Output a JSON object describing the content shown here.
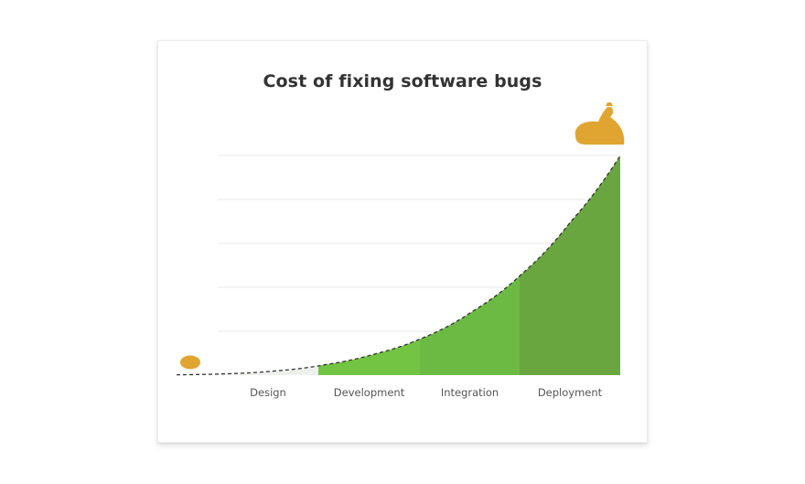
{
  "chart_data": {
    "type": "area",
    "title": "Cost of fixing software bugs",
    "xlabel": "",
    "ylabel": "",
    "categories": [
      "Design",
      "Development",
      "Integration",
      "Deployment"
    ],
    "x": [
      0,
      0.5,
      1,
      1.5,
      2,
      2.5,
      3,
      3.5,
      4,
      4.5
    ],
    "y": [
      0.15,
      0.6,
      1.9,
      4.7,
      9.5,
      17,
      29,
      46,
      70,
      100
    ],
    "ylim": [
      0,
      100
    ],
    "grid": true,
    "legend": "none",
    "colors": {
      "design": "#eef0ec",
      "development": "#74c443",
      "integration": "#6cba43",
      "deployment": "#69a63f",
      "curve": "#333333",
      "gridline": "#e8e8e8",
      "icon": "#e0a530"
    },
    "icons": [
      "coin-icon",
      "money-bag-icon"
    ]
  }
}
